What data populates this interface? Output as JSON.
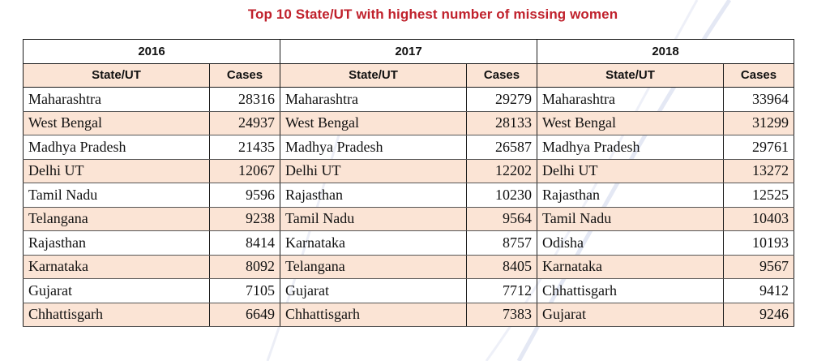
{
  "title": "Top 10 State/UT with highest number of missing women",
  "colors": {
    "title": "#c0212c",
    "shaded_row": "#fbe4d5",
    "border": "#1a1a1a"
  },
  "column_headers": {
    "state": "State/UT",
    "cases": "Cases"
  },
  "years": [
    {
      "year": "2016",
      "rows": [
        {
          "state": "Maharashtra",
          "cases": "28316"
        },
        {
          "state": "West Bengal",
          "cases": "24937"
        },
        {
          "state": "Madhya Pradesh",
          "cases": "21435"
        },
        {
          "state": "Delhi UT",
          "cases": "12067"
        },
        {
          "state": "Tamil Nadu",
          "cases": "9596"
        },
        {
          "state": "Telangana",
          "cases": "9238"
        },
        {
          "state": "Rajasthan",
          "cases": "8414"
        },
        {
          "state": "Karnataka",
          "cases": "8092"
        },
        {
          "state": "Gujarat",
          "cases": "7105"
        },
        {
          "state": "Chhattisgarh",
          "cases": "6649"
        }
      ]
    },
    {
      "year": "2017",
      "rows": [
        {
          "state": "Maharashtra",
          "cases": "29279"
        },
        {
          "state": "West Bengal",
          "cases": "28133"
        },
        {
          "state": "Madhya Pradesh",
          "cases": "26587"
        },
        {
          "state": "Delhi UT",
          "cases": "12202"
        },
        {
          "state": "Rajasthan",
          "cases": "10230"
        },
        {
          "state": "Tamil Nadu",
          "cases": "9564"
        },
        {
          "state": "Karnataka",
          "cases": "8757"
        },
        {
          "state": "Telangana",
          "cases": "8405"
        },
        {
          "state": "Gujarat",
          "cases": "7712"
        },
        {
          "state": "Chhattisgarh",
          "cases": "7383"
        }
      ]
    },
    {
      "year": "2018",
      "rows": [
        {
          "state": "Maharashtra",
          "cases": "33964"
        },
        {
          "state": "West Bengal",
          "cases": "31299"
        },
        {
          "state": "Madhya Pradesh",
          "cases": "29761"
        },
        {
          "state": "Delhi UT",
          "cases": "13272"
        },
        {
          "state": "Rajasthan",
          "cases": "12525"
        },
        {
          "state": "Tamil Nadu",
          "cases": "10403"
        },
        {
          "state": "Odisha",
          "cases": "10193"
        },
        {
          "state": "Karnataka",
          "cases": "9567"
        },
        {
          "state": "Chhattisgarh",
          "cases": "9412"
        },
        {
          "state": "Gujarat",
          "cases": "9246"
        }
      ]
    }
  ]
}
